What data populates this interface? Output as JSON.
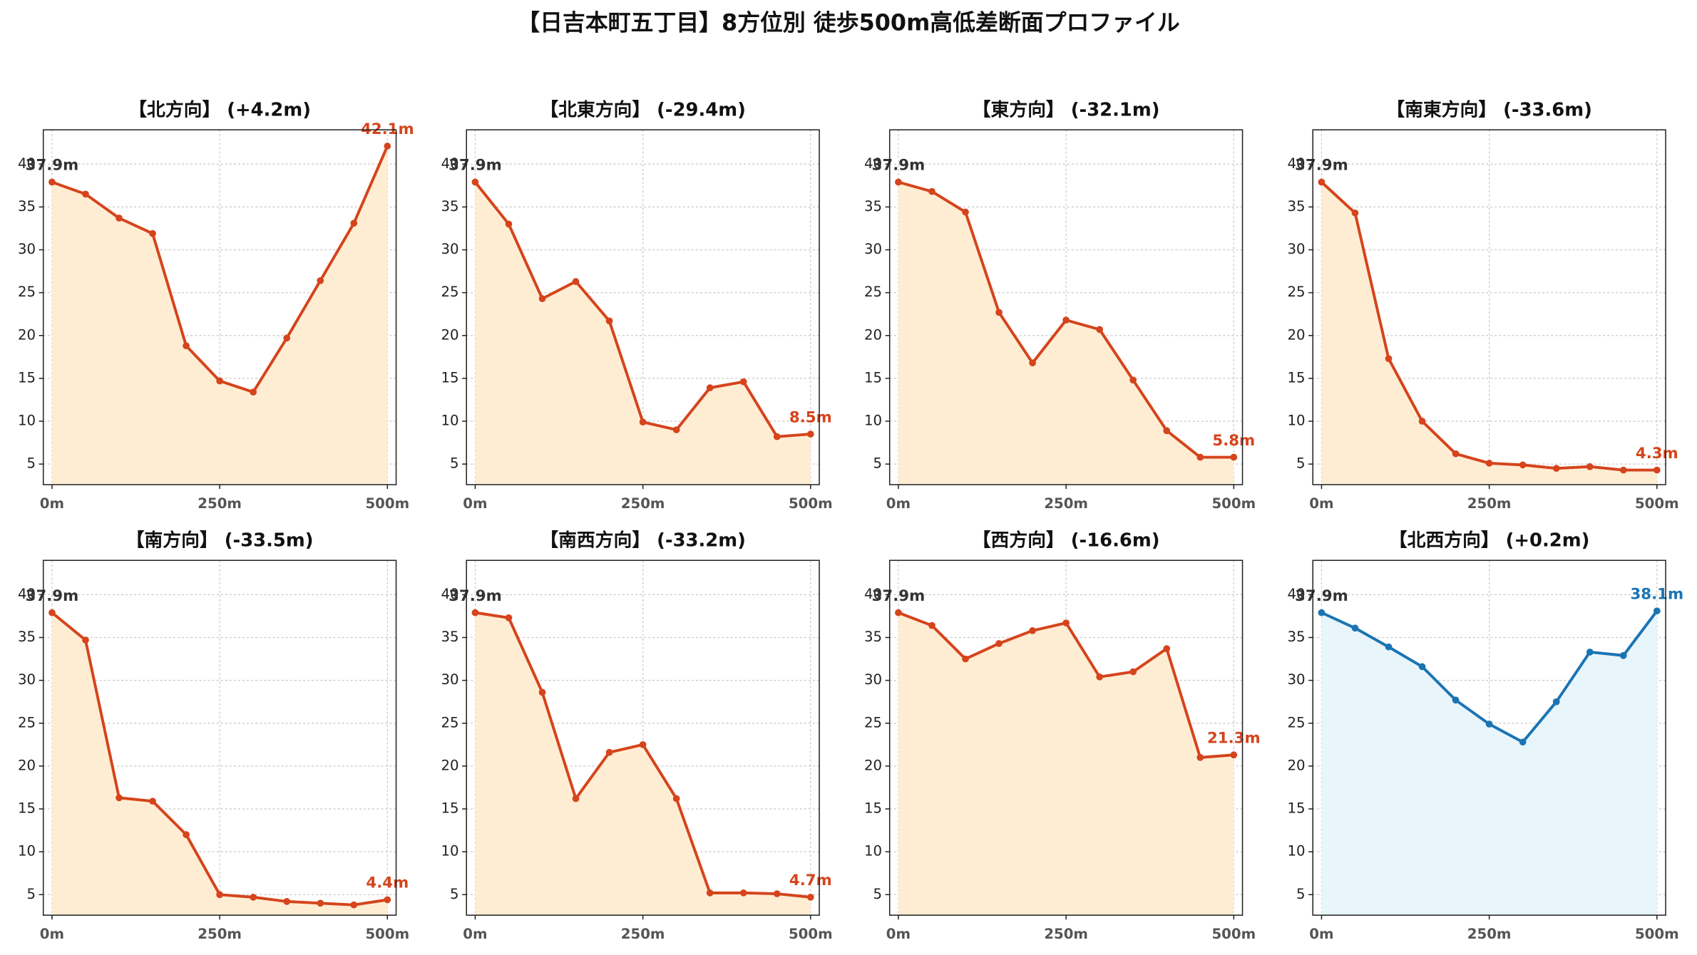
{
  "title": "【日吉本町五丁目】8方位別 徒歩500m高低差断面プロファイル",
  "chart_data": [
    {
      "type": "line",
      "title": "【北方向】 (+4.2m)",
      "color": "#d5441c",
      "fill_color": "#ffedd3",
      "start_label_color": "#333333",
      "grid": true,
      "x": [
        0,
        50,
        100,
        150,
        200,
        250,
        300,
        350,
        400,
        450,
        500
      ],
      "values": [
        37.9,
        36.5,
        33.7,
        31.9,
        18.8,
        14.7,
        13.4,
        19.7,
        26.4,
        33.1,
        42.1
      ],
      "value_labels": [
        "37.9m",
        null,
        null,
        null,
        null,
        null,
        null,
        null,
        null,
        null,
        "42.1m"
      ],
      "xlim": [
        -13,
        513
      ],
      "xticks": [
        {
          "value": 0,
          "label": "0m"
        },
        {
          "value": 250,
          "label": "250m"
        },
        {
          "value": 500,
          "label": "500m"
        }
      ],
      "ylim": [
        2.6,
        44
      ],
      "yticks": [
        5,
        10,
        15,
        20,
        25,
        30,
        35,
        40
      ]
    },
    {
      "type": "line",
      "title": "【北東方向】 (-29.4m)",
      "color": "#d5441c",
      "fill_color": "#ffedd3",
      "start_label_color": "#333333",
      "grid": true,
      "x": [
        0,
        50,
        100,
        150,
        200,
        250,
        300,
        350,
        400,
        450,
        500
      ],
      "values": [
        37.9,
        33.0,
        24.3,
        26.3,
        21.7,
        9.9,
        9.0,
        13.9,
        14.6,
        8.2,
        8.5
      ],
      "value_labels": [
        "37.9m",
        null,
        null,
        null,
        null,
        null,
        null,
        null,
        null,
        null,
        "8.5m"
      ],
      "xlim": [
        -13,
        513
      ],
      "xticks": [
        {
          "value": 0,
          "label": "0m"
        },
        {
          "value": 250,
          "label": "250m"
        },
        {
          "value": 500,
          "label": "500m"
        }
      ],
      "ylim": [
        2.6,
        44
      ],
      "yticks": [
        5,
        10,
        15,
        20,
        25,
        30,
        35,
        40
      ]
    },
    {
      "type": "line",
      "title": "【東方向】 (-32.1m)",
      "color": "#d5441c",
      "fill_color": "#ffedd3",
      "start_label_color": "#333333",
      "grid": true,
      "x": [
        0,
        50,
        100,
        150,
        200,
        250,
        300,
        350,
        400,
        450,
        500
      ],
      "values": [
        37.9,
        36.8,
        34.4,
        22.7,
        16.8,
        21.8,
        20.7,
        14.8,
        8.9,
        5.8,
        5.8
      ],
      "value_labels": [
        "37.9m",
        null,
        null,
        null,
        null,
        null,
        null,
        null,
        null,
        null,
        "5.8m"
      ],
      "xlim": [
        -13,
        513
      ],
      "xticks": [
        {
          "value": 0,
          "label": "0m"
        },
        {
          "value": 250,
          "label": "250m"
        },
        {
          "value": 500,
          "label": "500m"
        }
      ],
      "ylim": [
        2.6,
        44
      ],
      "yticks": [
        5,
        10,
        15,
        20,
        25,
        30,
        35,
        40
      ]
    },
    {
      "type": "line",
      "title": "【南東方向】 (-33.6m)",
      "color": "#d5441c",
      "fill_color": "#ffedd3",
      "start_label_color": "#333333",
      "grid": true,
      "x": [
        0,
        50,
        100,
        150,
        200,
        250,
        300,
        350,
        400,
        450,
        500
      ],
      "values": [
        37.9,
        34.3,
        17.3,
        10.0,
        6.2,
        5.1,
        4.9,
        4.5,
        4.7,
        4.3,
        4.3
      ],
      "value_labels": [
        "37.9m",
        null,
        null,
        null,
        null,
        null,
        null,
        null,
        null,
        null,
        "4.3m"
      ],
      "xlim": [
        -13,
        513
      ],
      "xticks": [
        {
          "value": 0,
          "label": "0m"
        },
        {
          "value": 250,
          "label": "250m"
        },
        {
          "value": 500,
          "label": "500m"
        }
      ],
      "ylim": [
        2.6,
        44
      ],
      "yticks": [
        5,
        10,
        15,
        20,
        25,
        30,
        35,
        40
      ]
    },
    {
      "type": "line",
      "title": "【南方向】 (-33.5m)",
      "color": "#d5441c",
      "fill_color": "#ffedd3",
      "start_label_color": "#333333",
      "grid": true,
      "x": [
        0,
        50,
        100,
        150,
        200,
        250,
        300,
        350,
        400,
        450,
        500
      ],
      "values": [
        37.9,
        34.7,
        16.3,
        15.9,
        12.0,
        5.0,
        4.7,
        4.2,
        4.0,
        3.8,
        4.4
      ],
      "value_labels": [
        "37.9m",
        null,
        null,
        null,
        null,
        null,
        null,
        null,
        null,
        null,
        "4.4m"
      ],
      "xlim": [
        -13,
        513
      ],
      "xticks": [
        {
          "value": 0,
          "label": "0m"
        },
        {
          "value": 250,
          "label": "250m"
        },
        {
          "value": 500,
          "label": "500m"
        }
      ],
      "ylim": [
        2.6,
        44
      ],
      "yticks": [
        5,
        10,
        15,
        20,
        25,
        30,
        35,
        40
      ]
    },
    {
      "type": "line",
      "title": "【南西方向】 (-33.2m)",
      "color": "#d5441c",
      "fill_color": "#ffedd3",
      "start_label_color": "#333333",
      "grid": true,
      "x": [
        0,
        50,
        100,
        150,
        200,
        250,
        300,
        350,
        400,
        450,
        500
      ],
      "values": [
        37.9,
        37.3,
        28.6,
        16.2,
        21.6,
        22.5,
        16.2,
        5.2,
        5.2,
        5.1,
        4.7
      ],
      "value_labels": [
        "37.9m",
        null,
        null,
        null,
        null,
        null,
        null,
        null,
        null,
        null,
        "4.7m"
      ],
      "xlim": [
        -13,
        513
      ],
      "xticks": [
        {
          "value": 0,
          "label": "0m"
        },
        {
          "value": 250,
          "label": "250m"
        },
        {
          "value": 500,
          "label": "500m"
        }
      ],
      "ylim": [
        2.6,
        44
      ],
      "yticks": [
        5,
        10,
        15,
        20,
        25,
        30,
        35,
        40
      ]
    },
    {
      "type": "line",
      "title": "【西方向】 (-16.6m)",
      "color": "#d5441c",
      "fill_color": "#ffedd3",
      "start_label_color": "#333333",
      "grid": true,
      "x": [
        0,
        50,
        100,
        150,
        200,
        250,
        300,
        350,
        400,
        450,
        500
      ],
      "values": [
        37.9,
        36.4,
        32.5,
        34.3,
        35.8,
        36.7,
        30.4,
        31.0,
        33.7,
        21.0,
        21.3
      ],
      "value_labels": [
        "37.9m",
        null,
        null,
        null,
        null,
        null,
        null,
        null,
        null,
        null,
        "21.3m"
      ],
      "xlim": [
        -13,
        513
      ],
      "xticks": [
        {
          "value": 0,
          "label": "0m"
        },
        {
          "value": 250,
          "label": "250m"
        },
        {
          "value": 500,
          "label": "500m"
        }
      ],
      "ylim": [
        2.6,
        44
      ],
      "yticks": [
        5,
        10,
        15,
        20,
        25,
        30,
        35,
        40
      ]
    },
    {
      "type": "line",
      "title": "【北西方向】 (+0.2m)",
      "color": "#1a74b4",
      "fill_color": "#e8f5fb",
      "start_label_color": "#333333",
      "grid": true,
      "x": [
        0,
        50,
        100,
        150,
        200,
        250,
        300,
        350,
        400,
        450,
        500
      ],
      "values": [
        37.9,
        36.1,
        33.9,
        31.6,
        27.7,
        24.9,
        22.8,
        27.5,
        33.3,
        32.9,
        38.1
      ],
      "value_labels": [
        "37.9m",
        null,
        null,
        null,
        null,
        null,
        null,
        null,
        null,
        null,
        "38.1m"
      ],
      "xlim": [
        -13,
        513
      ],
      "xticks": [
        {
          "value": 0,
          "label": "0m"
        },
        {
          "value": 250,
          "label": "250m"
        },
        {
          "value": 500,
          "label": "500m"
        }
      ],
      "ylim": [
        2.6,
        44
      ],
      "yticks": [
        5,
        10,
        15,
        20,
        25,
        30,
        35,
        40
      ]
    }
  ]
}
